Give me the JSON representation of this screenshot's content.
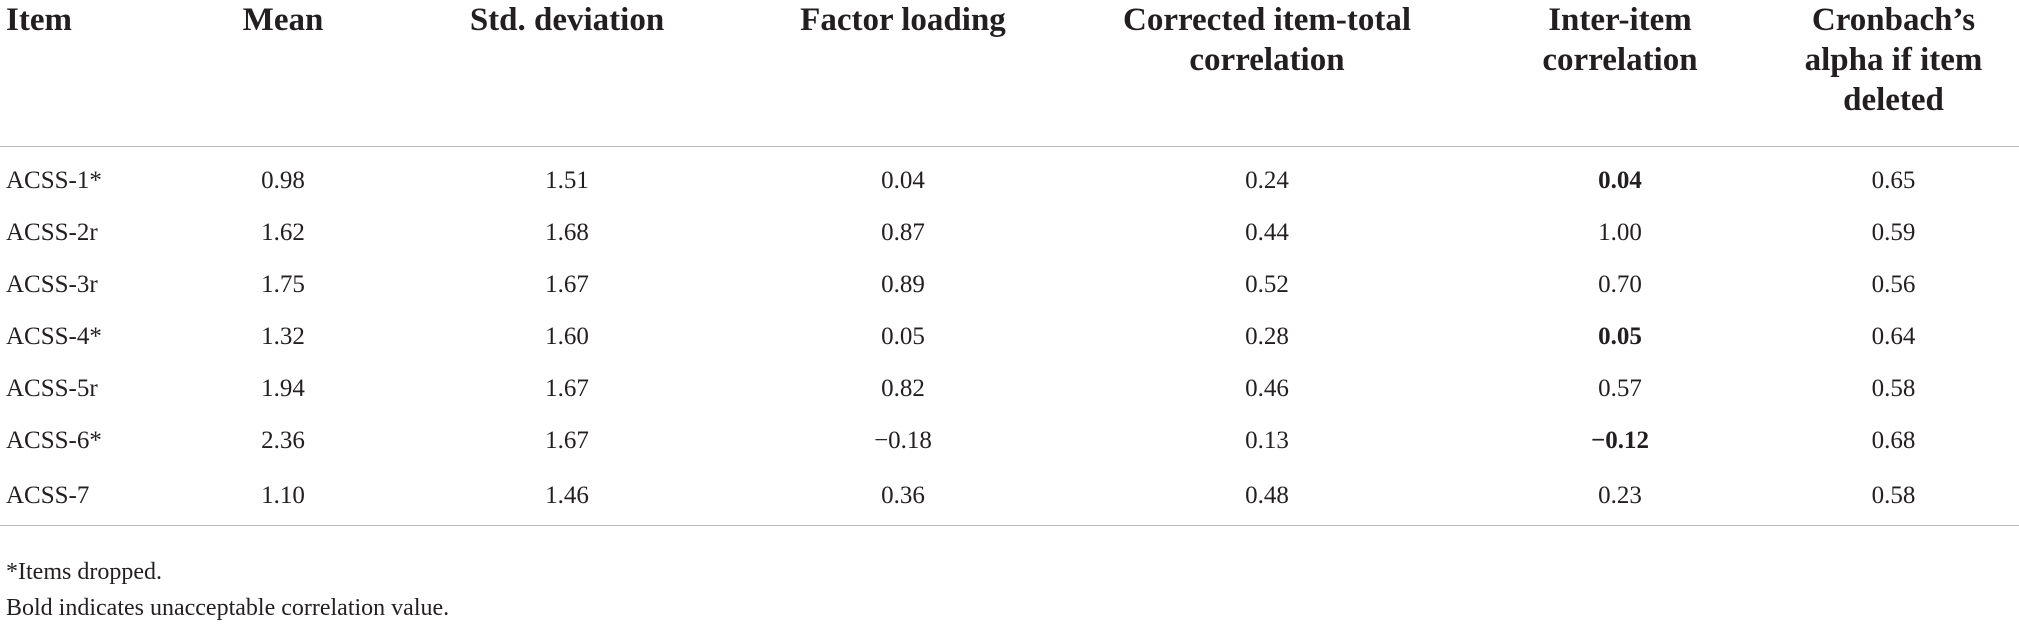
{
  "table": {
    "headers": [
      "Item",
      "Mean",
      "Std. deviation",
      "Factor loading",
      "Corrected item-total correlation",
      "Inter-item correlation",
      "Cronbach’s alpha if item deleted"
    ],
    "rows": [
      {
        "item": "ACSS-1*",
        "mean": "0.98",
        "sd": "1.51",
        "loading": "0.04",
        "item_total": "0.24",
        "inter_item": "0.04",
        "inter_item_bold": true,
        "alpha": "0.65"
      },
      {
        "item": "ACSS-2r",
        "mean": "1.62",
        "sd": "1.68",
        "loading": "0.87",
        "item_total": "0.44",
        "inter_item": "1.00",
        "inter_item_bold": false,
        "alpha": "0.59"
      },
      {
        "item": "ACSS-3r",
        "mean": "1.75",
        "sd": "1.67",
        "loading": "0.89",
        "item_total": "0.52",
        "inter_item": "0.70",
        "inter_item_bold": false,
        "alpha": "0.56"
      },
      {
        "item": "ACSS-4*",
        "mean": "1.32",
        "sd": "1.60",
        "loading": "0.05",
        "item_total": "0.28",
        "inter_item": "0.05",
        "inter_item_bold": true,
        "alpha": "0.64"
      },
      {
        "item": "ACSS-5r",
        "mean": "1.94",
        "sd": "1.67",
        "loading": "0.82",
        "item_total": "0.46",
        "inter_item": "0.57",
        "inter_item_bold": false,
        "alpha": "0.58"
      },
      {
        "item": "ACSS-6*",
        "mean": "2.36",
        "sd": "1.67",
        "loading": "−0.18",
        "item_total": "0.13",
        "inter_item": "−0.12",
        "inter_item_bold": true,
        "alpha": "0.68"
      },
      {
        "item": "ACSS-7",
        "mean": "1.10",
        "sd": "1.46",
        "loading": "0.36",
        "item_total": "0.48",
        "inter_item": "0.23",
        "inter_item_bold": false,
        "alpha": "0.58"
      }
    ]
  },
  "footnotes": {
    "dropped": "*Items dropped.",
    "bold": "Bold indicates unacceptable correlation value."
  }
}
